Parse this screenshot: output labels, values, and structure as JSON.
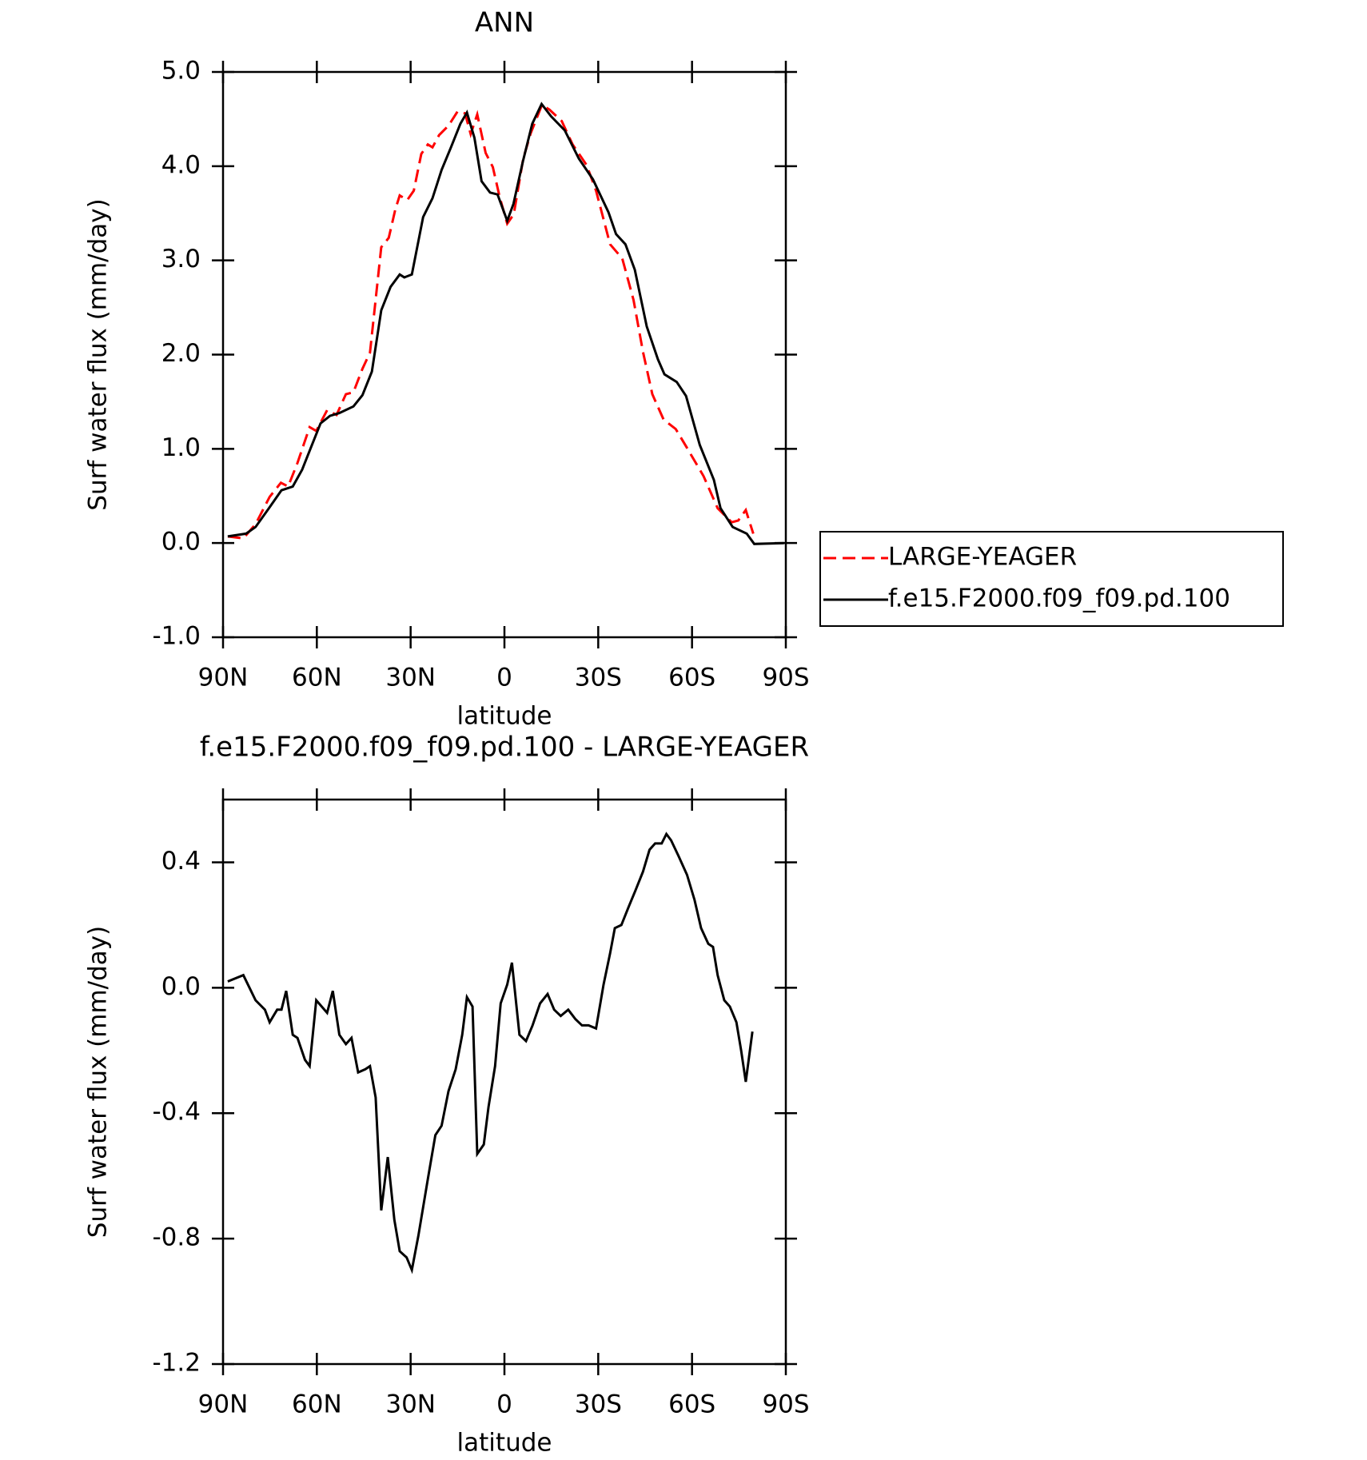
{
  "chart_data": [
    {
      "type": "line",
      "title": "ANN",
      "xlabel": "latitude",
      "ylabel": "Surf water flux (mm/day)",
      "xlim": [
        90,
        -90
      ],
      "xticks": [
        {
          "value": 90,
          "label": "90N"
        },
        {
          "value": 60,
          "label": "60N"
        },
        {
          "value": 30,
          "label": "30N"
        },
        0,
        {
          "value": -30,
          "label": "30S"
        },
        {
          "value": -60,
          "label": "60S"
        },
        {
          "value": -90,
          "label": "90S"
        }
      ],
      "ylim": [
        -1,
        5
      ],
      "yticks": [
        {
          "value": -1,
          "label": "-1.0"
        },
        {
          "value": 0,
          "label": "0.0"
        },
        {
          "value": 1,
          "label": "1.0"
        },
        {
          "value": 2,
          "label": "2.0"
        },
        {
          "value": 3,
          "label": "3.0"
        },
        {
          "value": 4,
          "label": "4.0"
        },
        {
          "value": 5,
          "label": "5.0"
        }
      ],
      "legend": "outside-right",
      "series": [
        {
          "name": "LARGE-YEAGER",
          "color": "#ff0000",
          "dash": true,
          "x": [
            88.5,
            83.5,
            79.6,
            75.1,
            71.5,
            69.2,
            66.2,
            62.3,
            60.2,
            56.7,
            53.7,
            50.7,
            48.3,
            45.4,
            43.0,
            39.4,
            37.0,
            34.9,
            33.5,
            31.1,
            29.0,
            26.6,
            24.5,
            23.0,
            20.9,
            17.9,
            15.0,
            12.6,
            10.8,
            8.7,
            6.0,
            3.7,
            1.5,
            -0.9,
            -3.0,
            -6.0,
            -8.4,
            -12.0,
            -14.4,
            -18.3,
            -21.8,
            -26.3,
            -29.3,
            -33.8,
            -37.7,
            -41.3,
            -44.3,
            -47.3,
            -50.9,
            -54.8,
            -58.4,
            -63.7,
            -68.2,
            -72.7,
            -74.8,
            -77.2,
            -79.6
          ],
          "values": [
            0.07,
            0.05,
            0.2,
            0.49,
            0.64,
            0.6,
            0.85,
            1.23,
            1.19,
            1.41,
            1.36,
            1.58,
            1.6,
            1.85,
            2.02,
            3.14,
            3.24,
            3.54,
            3.69,
            3.64,
            3.74,
            4.13,
            4.23,
            4.2,
            4.33,
            4.43,
            4.58,
            4.56,
            4.34,
            4.55,
            4.14,
            3.99,
            3.67,
            3.39,
            3.49,
            4.08,
            4.35,
            4.65,
            4.6,
            4.48,
            4.23,
            4.01,
            3.74,
            3.17,
            3.02,
            2.58,
            2.03,
            1.58,
            1.31,
            1.21,
            1.01,
            0.71,
            0.37,
            0.22,
            0.24,
            0.35,
            0.1
          ]
        },
        {
          "name": "f.e15.F2000.f09_f09.pd.100",
          "color": "#000000",
          "dash": false,
          "x": [
            88.5,
            82.6,
            79.6,
            75.1,
            71.3,
            67.7,
            64.7,
            61.7,
            58.8,
            55.8,
            52.8,
            48.3,
            45.4,
            42.4,
            39.4,
            36.4,
            33.5,
            32.0,
            29.6,
            26.0,
            23.0,
            20.1,
            17.1,
            14.1,
            12.0,
            9.6,
            7.3,
            4.6,
            2.2,
            -0.9,
            -2.9,
            -5.9,
            -8.9,
            -11.9,
            -14.9,
            -19.3,
            -23.8,
            -28.3,
            -33.3,
            -35.7,
            -38.7,
            -41.7,
            -45.5,
            -49.1,
            -51.2,
            -55.1,
            -58.1,
            -62.5,
            -67.0,
            -69.1,
            -73.0,
            -77.5,
            -79.9,
            -89.4
          ],
          "values": [
            0.07,
            0.1,
            0.17,
            0.38,
            0.56,
            0.6,
            0.78,
            1.03,
            1.27,
            1.35,
            1.38,
            1.45,
            1.57,
            1.82,
            2.47,
            2.72,
            2.85,
            2.82,
            2.85,
            3.46,
            3.66,
            3.96,
            4.2,
            4.45,
            4.57,
            4.3,
            3.84,
            3.72,
            3.7,
            3.42,
            3.6,
            4.05,
            4.45,
            4.66,
            4.53,
            4.38,
            4.08,
            3.86,
            3.51,
            3.28,
            3.17,
            2.9,
            2.3,
            1.95,
            1.79,
            1.71,
            1.56,
            1.04,
            0.67,
            0.37,
            0.17,
            0.1,
            -0.01,
            0
          ]
        }
      ]
    },
    {
      "type": "line",
      "title": "f.e15.F2000.f09_f09.pd.100 - LARGE-YEAGER",
      "xlabel": "latitude",
      "ylabel": "Surf water flux (mm/day)",
      "xlim": [
        90,
        -90
      ],
      "xticks": [
        {
          "value": 90,
          "label": "90N"
        },
        {
          "value": 60,
          "label": "60N"
        },
        {
          "value": 30,
          "label": "30N"
        },
        0,
        {
          "value": -30,
          "label": "30S"
        },
        {
          "value": -60,
          "label": "60S"
        },
        {
          "value": -90,
          "label": "90S"
        }
      ],
      "ylim": [
        -1.2,
        0.6
      ],
      "yticks": [
        -1.2,
        -0.8,
        -0.4,
        {
          "value": 0,
          "label": "0.0"
        },
        0.4
      ],
      "series": [
        {
          "color": "#000000",
          "dash": false,
          "x": [
            88.5,
            83.5,
            79.6,
            76.6,
            75.1,
            72.7,
            71.3,
            69.8,
            67.7,
            66.2,
            63.8,
            62.3,
            60.2,
            56.7,
            54.9,
            52.8,
            50.7,
            48.9,
            46.8,
            44.5,
            43.0,
            41.2,
            39.4,
            37.3,
            35.2,
            33.5,
            31.3,
            29.6,
            27.5,
            24.5,
            22.1,
            20.1,
            17.9,
            15.6,
            13.5,
            12.0,
            10.2,
            8.7,
            6.6,
            5.1,
            3.0,
            1.2,
            -0.9,
            -2.4,
            -4.8,
            -6.9,
            -9.0,
            -11.4,
            -13.8,
            -15.9,
            -18.0,
            -20.4,
            -22.7,
            -24.8,
            -26.9,
            -29.3,
            -31.7,
            -33.8,
            -35.3,
            -37.4,
            -39.8,
            -41.9,
            -44.3,
            -46.4,
            -48.2,
            -50.3,
            -51.8,
            -53.3,
            -55.7,
            -58.4,
            -60.8,
            -62.9,
            -65.2,
            -66.7,
            -68.2,
            -70.3,
            -72.1,
            -74.2,
            -75.7,
            -77.2,
            -79.3
          ],
          "values": [
            0.02,
            0.04,
            -0.04,
            -0.07,
            -0.11,
            -0.07,
            -0.07,
            -0.01,
            -0.15,
            -0.16,
            -0.23,
            -0.25,
            -0.04,
            -0.08,
            -0.01,
            -0.15,
            -0.18,
            -0.16,
            -0.27,
            -0.26,
            -0.25,
            -0.35,
            -0.71,
            -0.54,
            -0.74,
            -0.84,
            -0.86,
            -0.9,
            -0.79,
            -0.61,
            -0.47,
            -0.44,
            -0.33,
            -0.26,
            -0.15,
            -0.03,
            -0.06,
            -0.53,
            -0.5,
            -0.38,
            -0.25,
            -0.05,
            0.01,
            0.08,
            -0.15,
            -0.17,
            -0.12,
            -0.05,
            -0.02,
            -0.07,
            -0.09,
            -0.07,
            -0.1,
            -0.12,
            -0.12,
            -0.13,
            0.01,
            0.11,
            0.19,
            0.2,
            0.26,
            0.31,
            0.37,
            0.44,
            0.46,
            0.46,
            0.49,
            0.47,
            0.42,
            0.36,
            0.28,
            0.19,
            0.14,
            0.13,
            0.04,
            -0.04,
            -0.06,
            -0.11,
            -0.2,
            -0.3,
            -0.14
          ]
        }
      ]
    }
  ]
}
